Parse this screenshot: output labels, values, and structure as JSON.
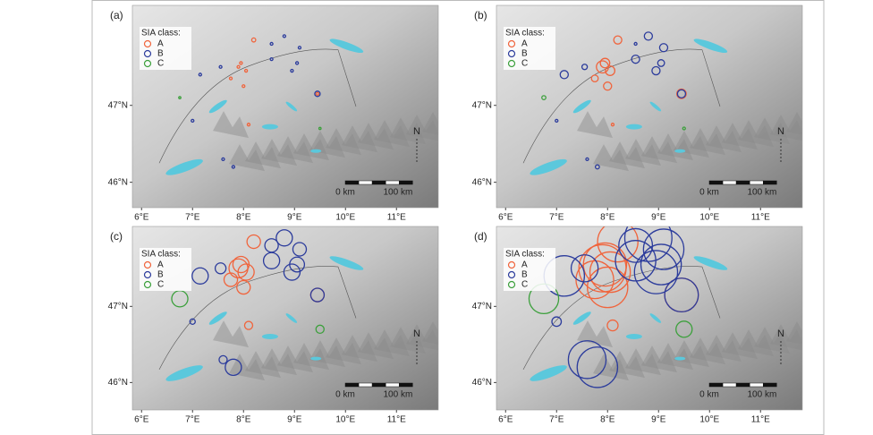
{
  "chart_data": [
    {
      "type": "scatter",
      "label": "(a)",
      "legend_title": "SIA class:",
      "scale_labels": [
        "0 km",
        "100 km"
      ],
      "north": "N",
      "xlim": [
        5.82,
        11.82
      ],
      "ylim": [
        45.67,
        48.3
      ],
      "xticks": [
        {
          "value": 6,
          "label": "6°E"
        },
        {
          "value": 7,
          "label": "7°E"
        },
        {
          "value": 8,
          "label": "8°E"
        },
        {
          "value": 9,
          "label": "9°E"
        },
        {
          "value": 10,
          "label": "10°E"
        },
        {
          "value": 11,
          "label": "11°E"
        }
      ],
      "yticks": [
        {
          "value": 46,
          "label": "46°N"
        },
        {
          "value": 47,
          "label": "47°N"
        }
      ],
      "series": [
        {
          "name": "A",
          "color": "#f0643c",
          "x": [
            8.2,
            7.9,
            8.05,
            7.75,
            8.0,
            8.1,
            7.95,
            9.45
          ],
          "y": [
            47.85,
            47.5,
            47.45,
            47.35,
            47.25,
            46.75,
            47.55,
            47.15
          ],
          "sizes": [
            3,
            2,
            2,
            2,
            2,
            2,
            2,
            2
          ]
        },
        {
          "name": "B",
          "color": "#2c3c9c",
          "x": [
            8.8,
            9.1,
            8.55,
            8.55,
            8.95,
            9.05,
            7.15,
            7.55,
            9.45,
            7.0,
            7.6,
            7.8
          ],
          "y": [
            47.9,
            47.75,
            47.8,
            47.6,
            47.45,
            47.55,
            47.4,
            47.5,
            47.15,
            46.8,
            46.3,
            46.2
          ],
          "sizes": [
            2,
            2,
            2,
            2,
            2,
            2,
            2,
            2,
            4,
            2,
            2,
            2
          ]
        },
        {
          "name": "C",
          "color": "#3ca03c",
          "x": [
            6.75,
            9.5
          ],
          "y": [
            47.1,
            46.7
          ],
          "sizes": [
            1,
            1
          ]
        }
      ]
    },
    {
      "type": "scatter",
      "label": "(b)",
      "legend_title": "SIA class:",
      "scale_labels": [
        "0 km",
        "100 km"
      ],
      "north": "N",
      "xlim": [
        5.82,
        11.82
      ],
      "ylim": [
        45.67,
        48.3
      ],
      "xticks": [
        {
          "value": 6,
          "label": "6°E"
        },
        {
          "value": 7,
          "label": "7°E"
        },
        {
          "value": 8,
          "label": "8°E"
        },
        {
          "value": 9,
          "label": "9°E"
        },
        {
          "value": 10,
          "label": "10°E"
        },
        {
          "value": 11,
          "label": "11°E"
        }
      ],
      "yticks": [
        {
          "value": 46,
          "label": "46°N"
        },
        {
          "value": 47,
          "label": "47°N"
        }
      ],
      "series": [
        {
          "name": "A",
          "color": "#f0643c",
          "x": [
            8.2,
            7.9,
            8.05,
            7.75,
            8.0,
            8.1,
            7.95,
            9.45
          ],
          "y": [
            47.85,
            47.5,
            47.45,
            47.35,
            47.25,
            46.75,
            47.55,
            47.15
          ],
          "sizes": [
            6,
            9,
            7,
            5,
            6,
            2,
            7,
            7
          ]
        },
        {
          "name": "B",
          "color": "#2c3c9c",
          "x": [
            8.8,
            9.1,
            8.55,
            8.55,
            8.95,
            9.05,
            7.15,
            7.55,
            9.45,
            7.0,
            7.6,
            7.8
          ],
          "y": [
            47.9,
            47.75,
            47.8,
            47.6,
            47.45,
            47.55,
            47.4,
            47.5,
            47.15,
            46.8,
            46.3,
            46.2
          ],
          "sizes": [
            6,
            6,
            2,
            6,
            6,
            5,
            6,
            4,
            6,
            2,
            2,
            3
          ]
        },
        {
          "name": "C",
          "color": "#3ca03c",
          "x": [
            6.75,
            9.5
          ],
          "y": [
            47.1,
            46.7
          ],
          "sizes": [
            3,
            2
          ]
        }
      ]
    },
    {
      "type": "scatter",
      "label": "(c)",
      "legend_title": "SIA class:",
      "scale_labels": [
        "0 km",
        "100 km"
      ],
      "north": "N",
      "xlim": [
        5.82,
        11.82
      ],
      "ylim": [
        45.64,
        48.05
      ],
      "xticks": [
        {
          "value": 6,
          "label": "6°E"
        },
        {
          "value": 7,
          "label": "7°E"
        },
        {
          "value": 8,
          "label": "8°E"
        },
        {
          "value": 9,
          "label": "9°E"
        },
        {
          "value": 10,
          "label": "10°E"
        },
        {
          "value": 11,
          "label": "11°E"
        }
      ],
      "yticks": [
        {
          "value": 46,
          "label": "46°N"
        },
        {
          "value": 47,
          "label": "47°N"
        }
      ],
      "series": [
        {
          "name": "A",
          "color": "#f0643c",
          "x": [
            8.2,
            7.9,
            8.05,
            7.75,
            8.0,
            8.1,
            7.95,
            9.45
          ],
          "y": [
            47.85,
            47.5,
            47.45,
            47.35,
            47.25,
            46.75,
            47.55,
            47.15
          ],
          "sizes": [
            10,
            14,
            12,
            10,
            10,
            6,
            12,
            10
          ]
        },
        {
          "name": "B",
          "color": "#2c3c9c",
          "x": [
            8.8,
            9.1,
            8.55,
            8.55,
            8.95,
            9.05,
            7.15,
            7.55,
            9.45,
            7.0,
            7.6,
            7.8
          ],
          "y": [
            47.9,
            47.75,
            47.8,
            47.6,
            47.45,
            47.55,
            47.4,
            47.5,
            47.15,
            46.8,
            46.3,
            46.2
          ],
          "sizes": [
            12,
            10,
            10,
            12,
            12,
            11,
            12,
            8,
            10,
            4,
            6,
            12
          ]
        },
        {
          "name": "C",
          "color": "#3ca03c",
          "x": [
            6.75,
            9.5
          ],
          "y": [
            47.1,
            46.7
          ],
          "sizes": [
            12,
            6
          ]
        }
      ]
    },
    {
      "type": "scatter",
      "label": "(d)",
      "legend_title": "SIA class:",
      "scale_labels": [
        "0 km",
        "100 km"
      ],
      "north": "N",
      "xlim": [
        5.82,
        11.82
      ],
      "ylim": [
        45.64,
        48.05
      ],
      "xticks": [
        {
          "value": 6,
          "label": "6°E"
        },
        {
          "value": 7,
          "label": "7°E"
        },
        {
          "value": 8,
          "label": "8°E"
        },
        {
          "value": 9,
          "label": "9°E"
        },
        {
          "value": 10,
          "label": "10°E"
        },
        {
          "value": 11,
          "label": "11°E"
        }
      ],
      "yticks": [
        {
          "value": 46,
          "label": "46°N"
        },
        {
          "value": 47,
          "label": "47°N"
        }
      ],
      "series": [
        {
          "name": "A",
          "color": "#f0643c",
          "x": [
            8.2,
            7.9,
            8.05,
            7.75,
            8.0,
            8.1,
            7.95,
            9.45
          ],
          "y": [
            47.85,
            47.5,
            47.45,
            47.35,
            47.25,
            46.75,
            47.55,
            47.15
          ],
          "sizes": [
            30,
            35,
            30,
            28,
            30,
            8,
            32,
            25
          ]
        },
        {
          "name": "B",
          "color": "#2c3c9c",
          "x": [
            8.8,
            9.1,
            8.55,
            8.55,
            8.95,
            9.05,
            7.15,
            7.55,
            9.45,
            7.0,
            7.6,
            7.8
          ],
          "y": [
            47.9,
            47.75,
            47.8,
            47.6,
            47.45,
            47.55,
            47.4,
            47.5,
            47.15,
            46.8,
            46.3,
            46.2
          ],
          "sizes": [
            35,
            30,
            25,
            30,
            32,
            30,
            30,
            20,
            25,
            7,
            28,
            30
          ]
        },
        {
          "name": "C",
          "color": "#3ca03c",
          "x": [
            6.75,
            9.5
          ],
          "y": [
            47.1,
            46.7
          ],
          "sizes": [
            22,
            12
          ]
        }
      ]
    }
  ]
}
